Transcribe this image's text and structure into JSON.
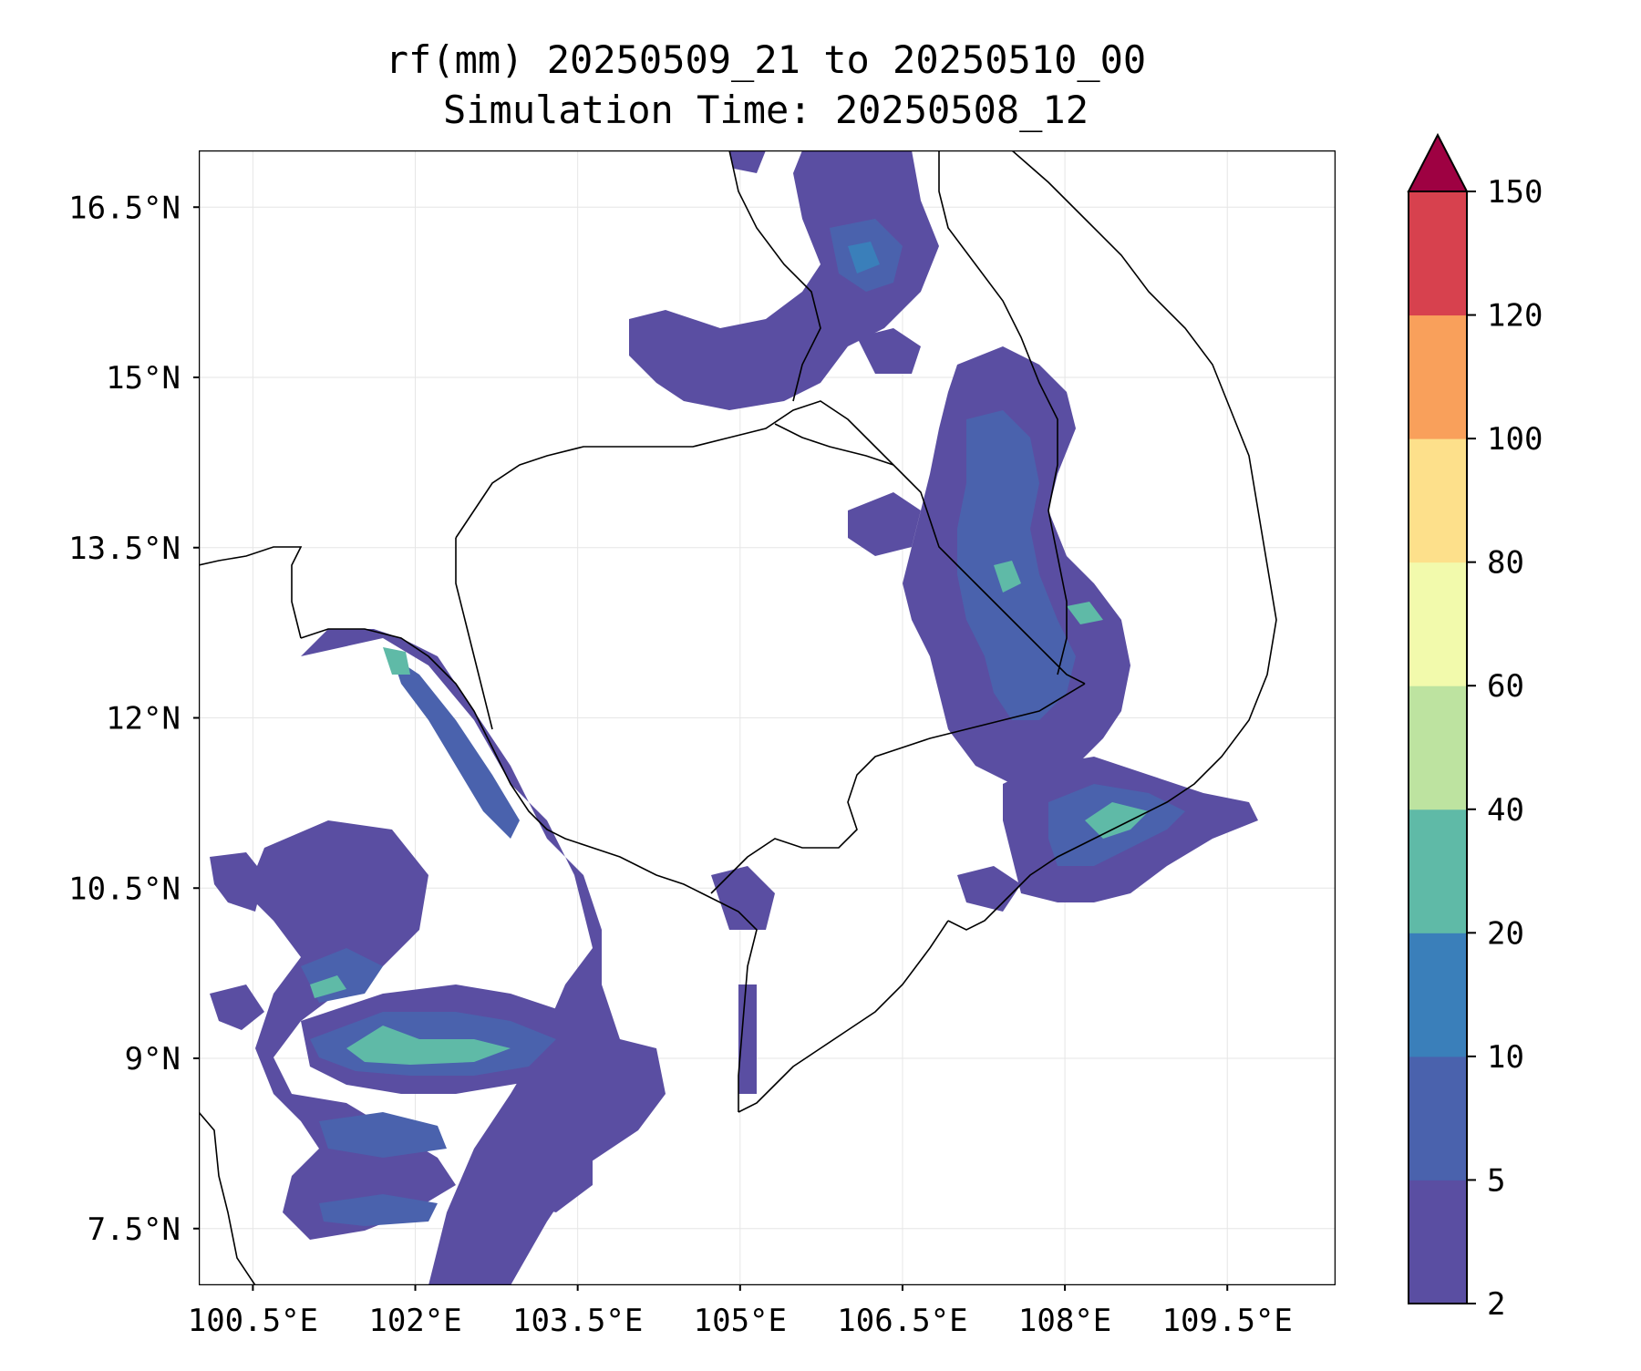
{
  "title": {
    "line1": "rf(mm) 20250509_21 to 20250510_00",
    "line2": "Simulation Time: 20250508_12"
  },
  "map": {
    "lon_range": [
      100.0,
      110.5
    ],
    "lat_range": [
      7.0,
      17.0
    ],
    "lon_ticks": [
      100.5,
      102,
      103.5,
      105,
      106.5,
      108,
      109.5
    ],
    "lat_ticks": [
      7.5,
      9,
      10.5,
      12,
      13.5,
      15,
      16.5
    ],
    "lon_tick_labels": [
      "100.5°E",
      "102°E",
      "103.5°E",
      "105°E",
      "106.5°E",
      "108°E",
      "109.5°E"
    ],
    "lat_tick_labels": [
      "7.5°N",
      "9°N",
      "10.5°N",
      "12°N",
      "13.5°N",
      "15°N",
      "16.5°N"
    ],
    "grid": true
  },
  "colorbar": {
    "levels": [
      2,
      5,
      10,
      20,
      40,
      60,
      80,
      100,
      120,
      150
    ],
    "labels": [
      "2",
      "5",
      "10",
      "20",
      "40",
      "60",
      "80",
      "100",
      "120",
      "150"
    ],
    "colors": [
      "#5a4ea2",
      "#4a62ad",
      "#3a7fba",
      "#5fbaa7",
      "#bde3a0",
      "#f2faac",
      "#fde08b",
      "#f9a05b",
      "#d7414e"
    ],
    "extend_color": "#9e0142"
  },
  "rain_colors": {
    "l1": "#5a4ea2",
    "l2": "#4a62ad",
    "l3": "#3a7fba",
    "l4": "#5fbaa7",
    "l5": "#bde3a0"
  }
}
